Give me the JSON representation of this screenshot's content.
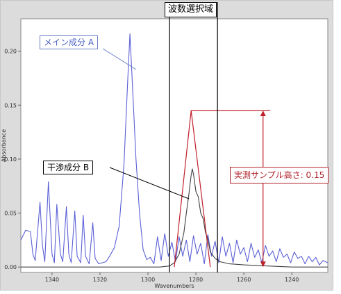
{
  "chart_data": {
    "type": "line",
    "xlabel": "Wavenumbers",
    "ylabel": "Absorbance",
    "xlim": [
      1353,
      1225
    ],
    "ylim": [
      -0.005,
      0.23
    ],
    "x_reversed": true,
    "x_ticks": [
      "1340",
      "1320",
      "1300",
      "1280",
      "1260",
      "1240"
    ],
    "y_ticks": [
      "0.00",
      "0.05",
      "0.10",
      "0.15",
      "0.20"
    ],
    "series": [
      {
        "color": "#5a5fd6",
        "x": [
          1353,
          1351,
          1349,
          1348,
          1347,
          1345,
          1344,
          1343,
          1341.5,
          1340,
          1339,
          1338,
          1336.5,
          1335.5,
          1334,
          1333,
          1332,
          1330.5,
          1329.5,
          1328,
          1327,
          1326,
          1324.5,
          1323,
          1322,
          1320.5,
          1319,
          1317.5,
          1316,
          1314,
          1312,
          1310,
          1308.5,
          1307.5,
          1306.5,
          1305,
          1303.5,
          1302,
          1300.5,
          1299,
          1297.5,
          1296,
          1294.5,
          1293,
          1291.5,
          1290,
          1288.5,
          1287,
          1285.5,
          1284,
          1282.5,
          1281,
          1279.5,
          1278,
          1276.5,
          1275,
          1273.5,
          1272,
          1270.5,
          1269,
          1267.5,
          1266,
          1264.5,
          1263,
          1261.5,
          1260,
          1258.5,
          1257,
          1255.5,
          1254,
          1252.5,
          1251,
          1249.5,
          1248,
          1246.5,
          1245,
          1243.5,
          1242,
          1240.5,
          1239,
          1237.5,
          1236,
          1234.5,
          1233,
          1231.5,
          1230,
          1228.5,
          1227,
          1225
        ],
        "y": [
          0.025,
          0.034,
          0.033,
          0.012,
          0.006,
          0.06,
          0.02,
          0.005,
          0.079,
          0.012,
          0.004,
          0.058,
          0.012,
          0.005,
          0.056,
          0.012,
          0.004,
          0.052,
          0.01,
          0.004,
          0.048,
          0.01,
          0.003,
          0.041,
          0.008,
          0.003,
          0.004,
          0.005,
          0.01,
          0.018,
          0.038,
          0.095,
          0.17,
          0.216,
          0.17,
          0.1,
          0.05,
          0.016,
          0.007,
          0.009,
          0.003,
          0.028,
          0.006,
          0.031,
          0.01,
          0.023,
          0.005,
          0.028,
          0.01,
          0.025,
          0.005,
          0.029,
          0.012,
          0.022,
          0.003,
          0.03,
          0.01,
          0.024,
          0.004,
          0.028,
          0.01,
          0.022,
          0.004,
          0.025,
          0.012,
          0.018,
          0.005,
          0.022,
          0.009,
          0.016,
          0.004,
          0.02,
          0.01,
          0.015,
          0.005,
          0.017,
          0.009,
          0.012,
          0.004,
          0.014,
          0.008,
          0.01,
          0.003,
          0.01,
          0.005,
          0.009,
          0.002,
          0.006,
          0.004
        ]
      },
      {
        "color": "#404040",
        "x": [
          1353,
          1340,
          1320,
          1300,
          1295,
          1291,
          1289,
          1287,
          1286,
          1285,
          1284,
          1283,
          1282,
          1281.5,
          1281,
          1280,
          1279,
          1278,
          1277,
          1276,
          1275,
          1274,
          1272,
          1270,
          1266,
          1260,
          1250,
          1240,
          1225
        ],
        "y": [
          0.0,
          0.0,
          0.0,
          0.0,
          0.0,
          0.001,
          0.004,
          0.012,
          0.022,
          0.032,
          0.05,
          0.066,
          0.085,
          0.091,
          0.086,
          0.07,
          0.065,
          0.05,
          0.045,
          0.032,
          0.026,
          0.014,
          0.008,
          0.005,
          0.003,
          0.002,
          0.001,
          0.0,
          0.0
        ]
      }
    ],
    "overlays": {
      "region_x": [
        1291,
        1271
      ],
      "red_triangle": {
        "x": [
          1289,
          1282,
          1274
        ],
        "y": [
          0.0,
          0.145,
          0.0
        ]
      },
      "red_top_y": 0.145,
      "red_top_x_end": 1249,
      "red_arrow_x": 1252
    },
    "annotations": {
      "main_component": "メイン成分 A",
      "interference": "干渉成分 B",
      "measured_height": "実測サンプル高さ: 0.15",
      "region": "波数選択域"
    }
  }
}
